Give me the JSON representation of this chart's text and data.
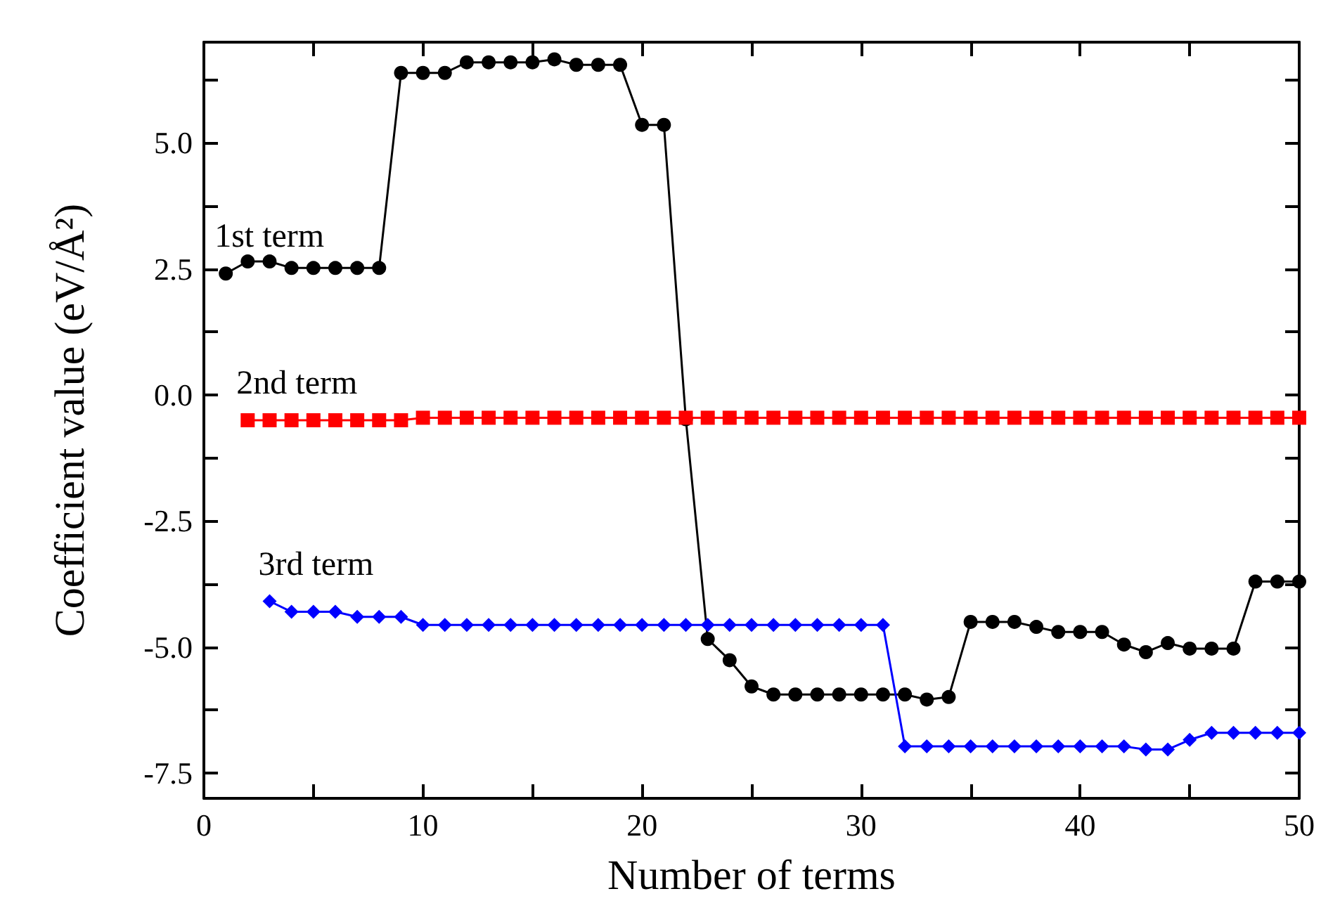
{
  "chart_data": {
    "type": "line",
    "xlabel": "Number of terms",
    "ylabel": "Coefficient value (eV/Å²)",
    "xlim": [
      0,
      50
    ],
    "xticks": [
      0,
      {
        "value": 5,
        "label": null
      },
      10,
      {
        "value": 15,
        "label": null
      },
      20,
      {
        "value": 25,
        "label": null
      },
      30,
      {
        "value": 35,
        "label": null
      },
      40,
      {
        "value": 45,
        "label": null
      },
      50
    ],
    "ylim": [
      -8,
      7
    ],
    "yticks": [
      {
        "value": -7.5,
        "label": "-7.5"
      },
      {
        "value": -6.25,
        "label": null
      },
      {
        "value": -5,
        "label": "-5.0"
      },
      {
        "value": -3.75,
        "label": null
      },
      {
        "value": -2.5,
        "label": "-2.5"
      },
      {
        "value": -1.25,
        "label": null
      },
      {
        "value": 0,
        "label": "0.0"
      },
      {
        "value": 1.25,
        "label": null
      },
      {
        "value": 2.5,
        "label": "2.5"
      },
      {
        "value": 3.75,
        "label": null
      },
      {
        "value": 5,
        "label": "5.0"
      },
      {
        "value": 6.25,
        "label": null
      }
    ],
    "grid": false,
    "legend": false,
    "line_style": "solid",
    "series": [
      {
        "name": "1st term",
        "color": "#000000",
        "marker": "circle",
        "x": [
          1,
          2,
          3,
          4,
          5,
          6,
          7,
          8,
          9,
          10,
          11,
          12,
          13,
          14,
          15,
          16,
          17,
          18,
          19,
          20,
          21,
          22,
          23,
          24,
          25,
          26,
          27,
          28,
          29,
          30,
          31,
          32,
          33,
          34,
          35,
          36,
          37,
          38,
          39,
          40,
          41,
          42,
          43,
          44,
          45,
          46,
          47,
          48,
          49,
          50
        ],
        "values": [
          2.41,
          2.65,
          2.65,
          2.52,
          2.52,
          2.52,
          2.52,
          2.52,
          6.39,
          6.39,
          6.39,
          6.6,
          6.6,
          6.6,
          6.6,
          6.66,
          6.55,
          6.55,
          6.55,
          5.36,
          5.36,
          -0.48,
          -4.84,
          -5.26,
          -5.78,
          -5.94,
          -5.94,
          -5.94,
          -5.94,
          -5.94,
          -5.94,
          -5.94,
          -6.04,
          -5.99,
          -4.5,
          -4.5,
          -4.5,
          -4.6,
          -4.7,
          -4.7,
          -4.7,
          -4.95,
          -5.1,
          -4.92,
          -5.03,
          -5.03,
          -5.03,
          -3.7,
          -3.7,
          -3.7
        ]
      },
      {
        "name": "2nd term",
        "color": "#ff0000",
        "marker": "square",
        "x": [
          2,
          3,
          4,
          5,
          6,
          7,
          8,
          9,
          10,
          11,
          12,
          13,
          14,
          15,
          16,
          17,
          18,
          19,
          20,
          21,
          22,
          23,
          24,
          25,
          26,
          27,
          28,
          29,
          30,
          31,
          32,
          33,
          34,
          35,
          36,
          37,
          38,
          39,
          40,
          41,
          42,
          43,
          44,
          45,
          46,
          47,
          48,
          49,
          50
        ],
        "values": [
          -0.5,
          -0.5,
          -0.5,
          -0.5,
          -0.5,
          -0.5,
          -0.5,
          -0.5,
          -0.45,
          -0.45,
          -0.45,
          -0.45,
          -0.45,
          -0.45,
          -0.45,
          -0.45,
          -0.45,
          -0.45,
          -0.45,
          -0.45,
          -0.45,
          -0.45,
          -0.45,
          -0.45,
          -0.45,
          -0.45,
          -0.45,
          -0.45,
          -0.45,
          -0.45,
          -0.45,
          -0.45,
          -0.45,
          -0.45,
          -0.45,
          -0.45,
          -0.45,
          -0.45,
          -0.45,
          -0.45,
          -0.45,
          -0.45,
          -0.45,
          -0.45,
          -0.45,
          -0.45,
          -0.45,
          -0.45,
          -0.45
        ]
      },
      {
        "name": "3rd term",
        "color": "#0000ff",
        "marker": "diamond",
        "x": [
          3,
          4,
          5,
          6,
          7,
          8,
          9,
          10,
          11,
          12,
          13,
          14,
          15,
          16,
          17,
          18,
          19,
          20,
          21,
          22,
          23,
          24,
          25,
          26,
          27,
          28,
          29,
          30,
          31,
          32,
          33,
          34,
          35,
          36,
          37,
          38,
          39,
          40,
          41,
          42,
          43,
          44,
          45,
          46,
          47,
          48,
          49,
          50
        ],
        "values": [
          -4.09,
          -4.3,
          -4.3,
          -4.3,
          -4.4,
          -4.4,
          -4.4,
          -4.56,
          -4.56,
          -4.56,
          -4.56,
          -4.56,
          -4.56,
          -4.56,
          -4.56,
          -4.56,
          -4.56,
          -4.56,
          -4.56,
          -4.56,
          -4.56,
          -4.56,
          -4.56,
          -4.56,
          -4.56,
          -4.56,
          -4.56,
          -4.56,
          -4.56,
          -6.97,
          -6.97,
          -6.97,
          -6.97,
          -6.97,
          -6.97,
          -6.97,
          -6.97,
          -6.97,
          -6.97,
          -6.97,
          -7.03,
          -7.03,
          -6.84,
          -6.7,
          -6.7,
          -6.7,
          -6.7,
          -6.7
        ]
      }
    ]
  }
}
